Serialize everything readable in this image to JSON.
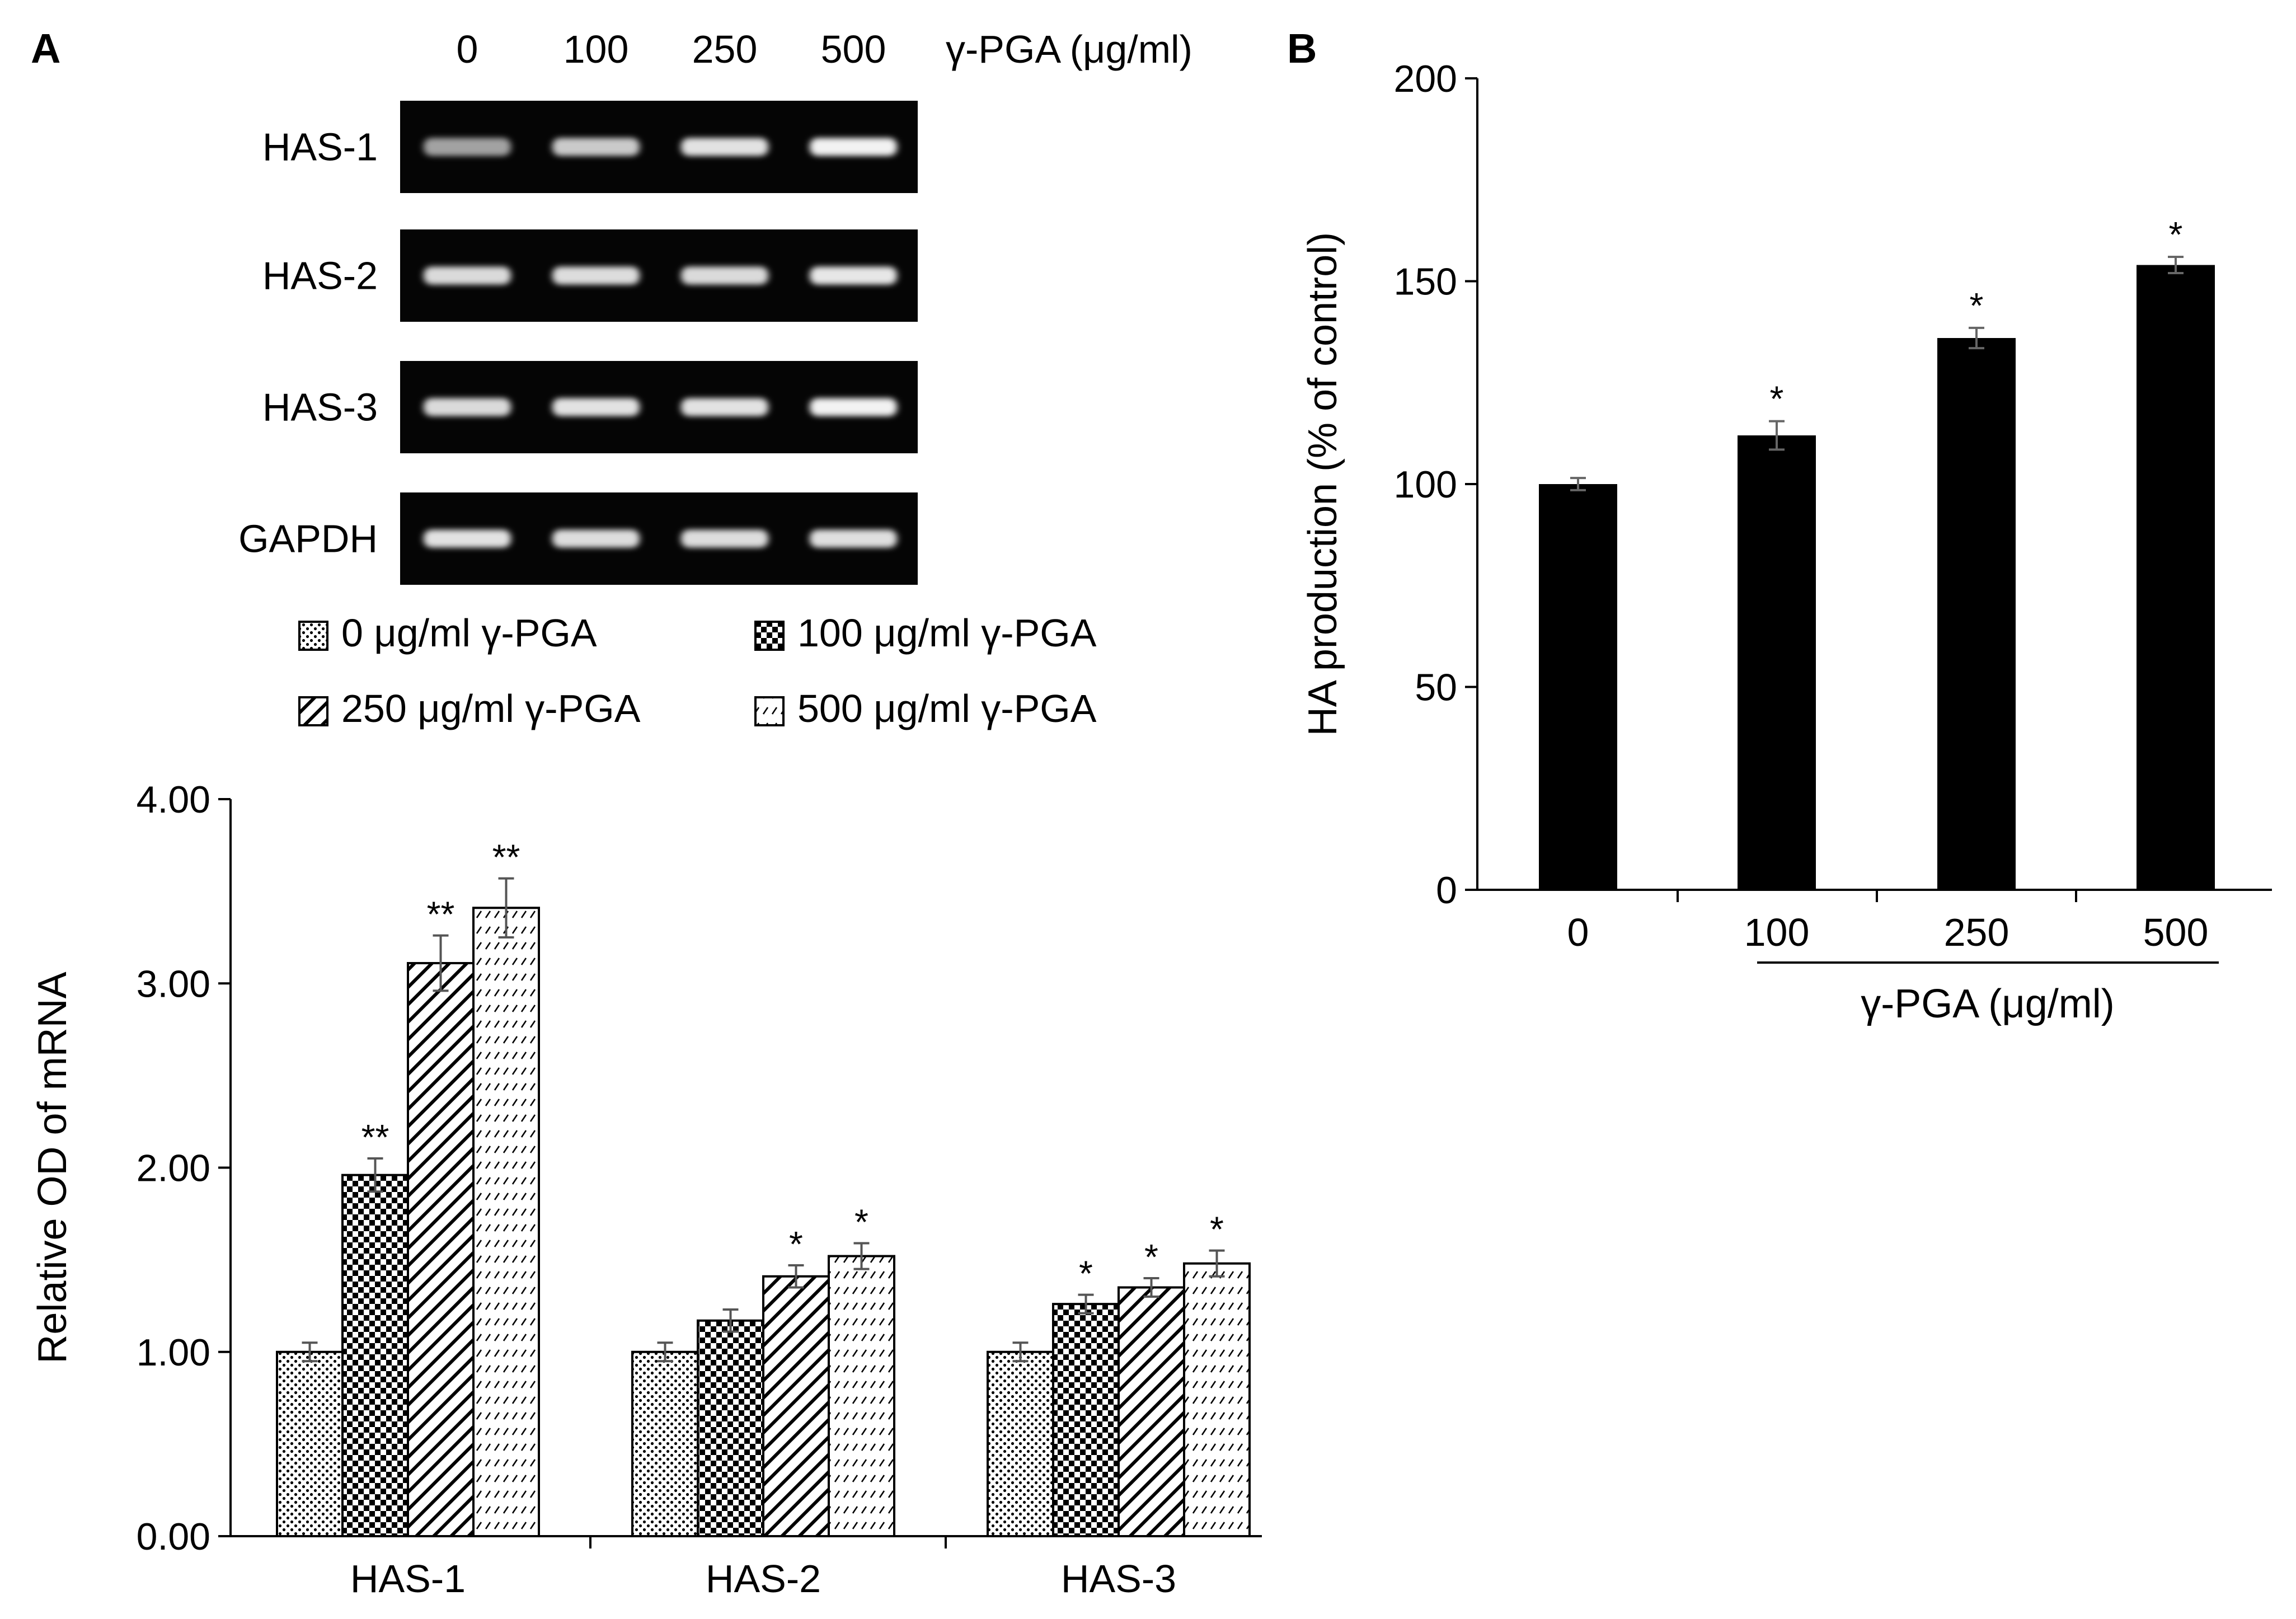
{
  "panel_a": {
    "label": "A",
    "gel": {
      "lane_labels": [
        "0",
        "100",
        "250",
        "500"
      ],
      "unit_label": "γ-PGA (μg/ml)",
      "rows": [
        {
          "name": "HAS-1",
          "band_intensity": [
            0.45,
            0.7,
            0.85,
            0.95
          ]
        },
        {
          "name": "HAS-2",
          "band_intensity": [
            0.8,
            0.82,
            0.8,
            0.88
          ]
        },
        {
          "name": "HAS-3",
          "band_intensity": [
            0.8,
            0.85,
            0.85,
            0.95
          ]
        },
        {
          "name": "GAPDH",
          "band_intensity": [
            0.85,
            0.82,
            0.82,
            0.83
          ]
        }
      ]
    },
    "legend": [
      "0 μg/ml γ-PGA",
      "100 μg/ml γ-PGA",
      "250 μg/ml γ-PGA",
      "500 μg/ml γ-PGA"
    ]
  },
  "panel_b": {
    "label": "B",
    "group_bracket_label": "γ-PGA (μg/ml)"
  },
  "chart_data": [
    {
      "id": "panel-a-bar",
      "type": "bar",
      "categories": [
        "HAS-1",
        "HAS-2",
        "HAS-3"
      ],
      "series": [
        {
          "name": "0 μg/ml γ-PGA",
          "pattern": "dots",
          "values": [
            1.0,
            1.0,
            1.0
          ],
          "errors": [
            0.05,
            0.05,
            0.05
          ],
          "stars": [
            "",
            "",
            ""
          ]
        },
        {
          "name": "100 μg/ml γ-PGA",
          "pattern": "checker",
          "values": [
            1.96,
            1.17,
            1.26
          ],
          "errors": [
            0.09,
            0.06,
            0.05
          ],
          "stars": [
            "**",
            "",
            "*"
          ]
        },
        {
          "name": "250 μg/ml γ-PGA",
          "pattern": "diagonal",
          "values": [
            3.11,
            1.41,
            1.35
          ],
          "errors": [
            0.15,
            0.06,
            0.05
          ],
          "stars": [
            "**",
            "*",
            "*"
          ]
        },
        {
          "name": "500 μg/ml γ-PGA",
          "pattern": "dashes",
          "values": [
            3.41,
            1.52,
            1.48
          ],
          "errors": [
            0.16,
            0.07,
            0.07
          ],
          "stars": [
            "**",
            "*",
            "*"
          ]
        }
      ],
      "ylabel": "Relative OD of mRNA",
      "ylim": [
        0,
        4
      ],
      "yticks": [
        "0.00",
        "1.00",
        "2.00",
        "3.00",
        "4.00"
      ]
    },
    {
      "id": "panel-b-bar",
      "type": "bar",
      "categories": [
        "0",
        "100",
        "250",
        "500"
      ],
      "values": [
        100,
        112,
        136,
        154
      ],
      "errors": [
        1.5,
        3.5,
        2.5,
        2.0
      ],
      "stars": [
        "",
        "*",
        "*",
        "*"
      ],
      "ylabel": "HA production (% of control)",
      "xlabel": "γ-PGA (μg/ml)",
      "ylim": [
        0,
        200
      ],
      "yticks": [
        "0",
        "50",
        "100",
        "150",
        "200"
      ]
    }
  ]
}
